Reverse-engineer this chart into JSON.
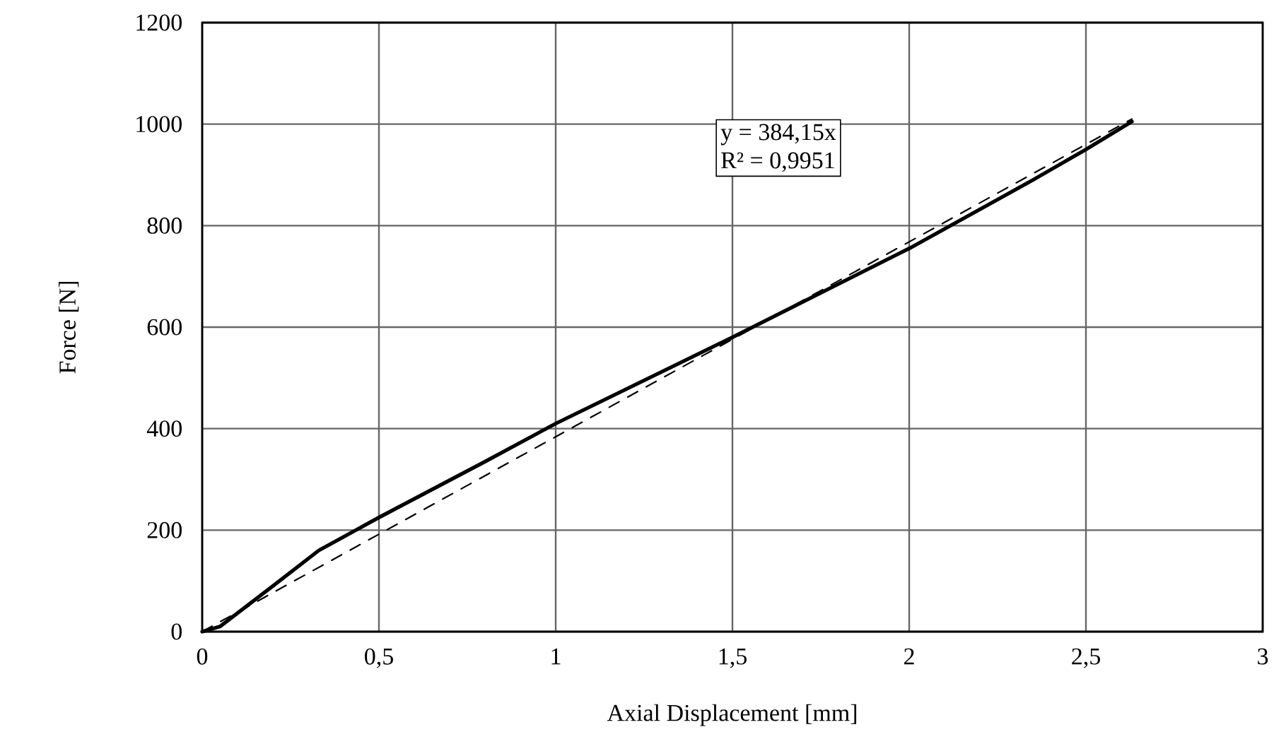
{
  "chart_data": {
    "type": "line",
    "xlabel": "Axial Displacement [mm]",
    "ylabel": "Force [N]",
    "xlim": [
      0,
      3
    ],
    "ylim": [
      0,
      1200
    ],
    "xticks": [
      0,
      {
        "value": 0.5,
        "label": "0,5"
      },
      1,
      {
        "value": 1.5,
        "label": "1,5"
      },
      2,
      {
        "value": 2.5,
        "label": "2,5"
      },
      3
    ],
    "yticks": [
      0,
      200,
      400,
      600,
      800,
      1000,
      1200
    ],
    "grid": true,
    "marker": "none",
    "annotations": [
      "y = 384,15x",
      "R² = 0,9951"
    ],
    "series": [
      {
        "color": "#000000",
        "line_style": "solid",
        "x": [
          0,
          0.05,
          0.2,
          0.33,
          0.5,
          0.8,
          1,
          1.5,
          2,
          2.35,
          2.5,
          2.63
        ],
        "values": [
          0,
          10,
          90,
          160,
          225,
          335,
          410,
          580,
          755,
          890,
          950,
          1005
        ]
      },
      {
        "color": "#000000",
        "line_style": "dashed",
        "x": [
          0,
          2.63
        ],
        "values": [
          0,
          1010
        ]
      }
    ]
  }
}
